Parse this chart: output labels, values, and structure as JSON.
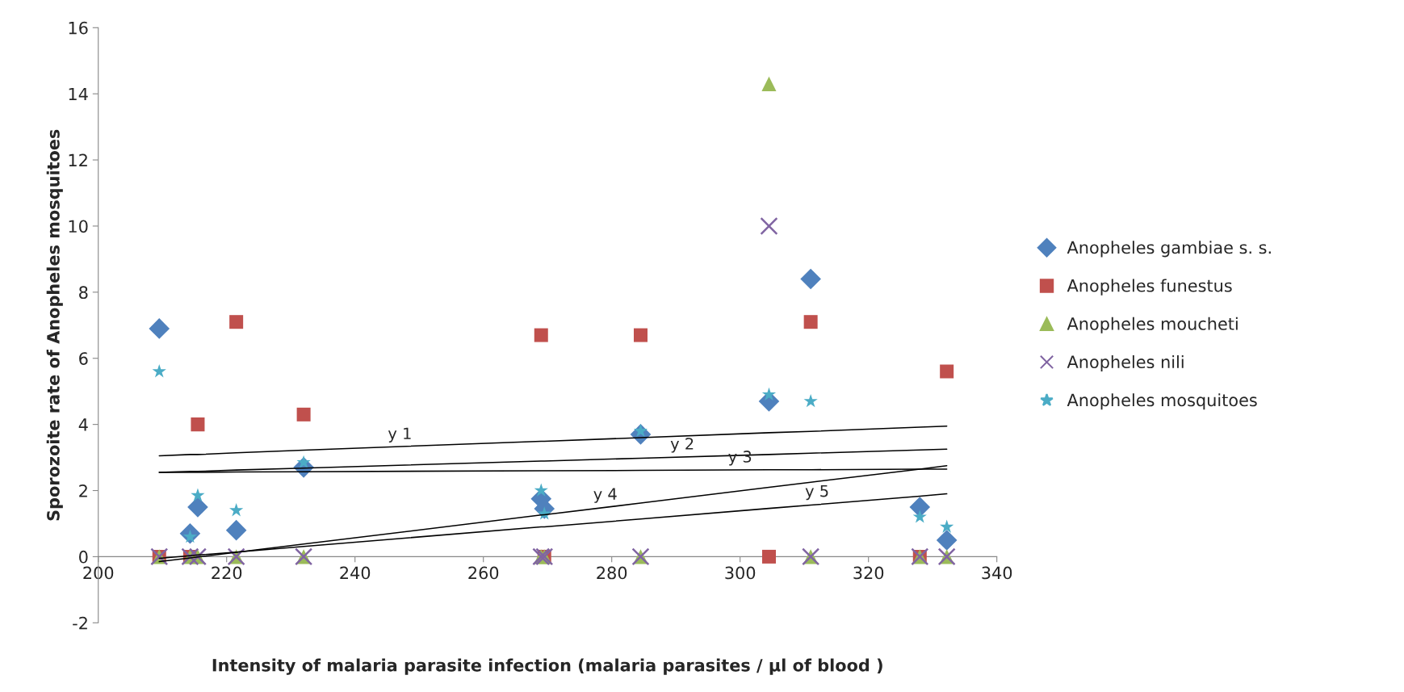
{
  "chart_data": {
    "type": "scatter",
    "xlabel": "Intensity of malaria parasite infection (malaria parasites / µl of blood )",
    "ylabel": "Sporozoite rate of Anopheles mosquitoes",
    "x": [
      209.5,
      214.3,
      215.5,
      221.5,
      232,
      269,
      269.5,
      284.5,
      304.5,
      311,
      328,
      332.2
    ],
    "series": [
      {
        "name": "Anopheles gambiae s. s.",
        "color": "#4f81bd",
        "marker": "diamond",
        "values": [
          6.9,
          0.7,
          1.5,
          0.8,
          2.7,
          1.75,
          1.45,
          3.7,
          4.7,
          8.4,
          1.5,
          0.5
        ]
      },
      {
        "name": "Anopheles funestus",
        "color": "#c0504d",
        "marker": "square",
        "values": [
          0,
          0,
          4.0,
          7.1,
          4.3,
          6.7,
          0,
          6.7,
          0,
          7.1,
          0,
          5.6
        ]
      },
      {
        "name": "Anopheles moucheti",
        "color": "#9bbb59",
        "marker": "triangle",
        "values": [
          0,
          0,
          0,
          0,
          0,
          0,
          0,
          0,
          14.3,
          0,
          0,
          0
        ]
      },
      {
        "name": "Anopheles nili",
        "color": "#8064a2",
        "marker": "cross",
        "values": [
          0,
          0,
          0,
          0,
          0,
          0,
          0,
          0,
          10,
          0,
          0,
          0
        ]
      },
      {
        "name": "Anopheles mosquitoes",
        "color": "#4bacc6",
        "marker": "star",
        "values": [
          5.6,
          0.6,
          1.85,
          1.4,
          2.85,
          2.0,
          1.3,
          3.8,
          4.9,
          4.7,
          1.2,
          0.9
        ]
      },
      {
        "type": "line",
        "color": "#000000",
        "marker": "none",
        "values": [
          3.05,
          3.09,
          3.09,
          3.14,
          3.22,
          3.49,
          3.49,
          3.6,
          3.75,
          3.79,
          3.92,
          3.95
        ]
      },
      {
        "type": "line",
        "color": "#000000",
        "marker": "none",
        "values": [
          2.55,
          2.58,
          2.58,
          2.62,
          2.68,
          2.89,
          2.89,
          2.98,
          3.09,
          3.13,
          3.23,
          3.25
        ]
      },
      {
        "type": "line",
        "color": "#000000",
        "marker": "none",
        "values": [
          2.55,
          2.55,
          2.55,
          2.56,
          2.57,
          2.6,
          2.6,
          2.61,
          2.63,
          2.63,
          2.65,
          2.65
        ]
      },
      {
        "type": "line",
        "color": "#000000",
        "marker": "none",
        "values": [
          -0.15,
          -0.04,
          -0.01,
          0.13,
          0.38,
          1.26,
          1.27,
          1.62,
          2.1,
          2.25,
          2.65,
          2.75
        ]
      },
      {
        "type": "line",
        "color": "#000000",
        "marker": "none",
        "values": [
          -0.05,
          0.03,
          0.05,
          0.14,
          0.31,
          0.9,
          0.9,
          1.14,
          1.46,
          1.56,
          1.83,
          1.9
        ]
      }
    ],
    "annotations": [
      {
        "text": "y 1",
        "x": 247,
        "y": 3.32
      },
      {
        "text": "y 2",
        "x": 291,
        "y": 3.01
      },
      {
        "text": "y 3",
        "x": 300,
        "y": 2.62
      },
      {
        "text": "y 4",
        "x": 279,
        "y": 1.49
      },
      {
        "text": "y 5",
        "x": 312,
        "y": 1.58
      }
    ],
    "xlim": [
      200,
      340
    ],
    "xticks": [
      200,
      220,
      240,
      260,
      280,
      300,
      320,
      340
    ],
    "ylim": [
      -2,
      16
    ],
    "yticks": [
      -2,
      0,
      2,
      4,
      6,
      8,
      10,
      12,
      14,
      16
    ],
    "grid": false,
    "legend": "right"
  }
}
